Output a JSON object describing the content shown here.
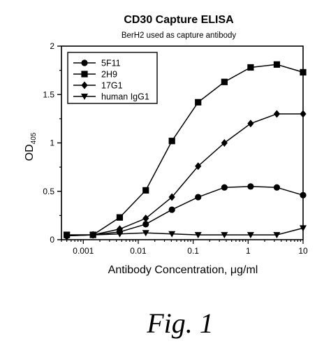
{
  "chart_data": {
    "type": "line",
    "title": "CD30 Capture ELISA",
    "subtitle": "BerH2 used as  capture antibody",
    "xlabel": "Antibody Concentration, μg/ml",
    "ylabel": "OD",
    "ylabel_sub": "405",
    "xscale": "log",
    "xlim": [
      0.0004,
      10
    ],
    "ylim": [
      0,
      2
    ],
    "x_ticks": [
      0.001,
      0.01,
      0.1,
      1,
      10
    ],
    "x_tick_labels": [
      "0.001",
      "0.01",
      "0.1",
      "1",
      "10"
    ],
    "y_ticks": [
      0,
      0.5,
      1,
      1.5,
      2
    ],
    "y_tick_labels": [
      "0",
      "0.5",
      "1",
      "1.5",
      "2"
    ],
    "legend_position": "top-left",
    "x": [
      0.0005,
      0.0015,
      0.0046,
      0.0137,
      0.041,
      0.123,
      0.37,
      1.11,
      3.33,
      10
    ],
    "series": [
      {
        "name": "5F11",
        "marker": "circle",
        "values": [
          0.04,
          0.05,
          0.08,
          0.16,
          0.31,
          0.44,
          0.54,
          0.55,
          0.54,
          0.46
        ]
      },
      {
        "name": "2H9",
        "marker": "square",
        "values": [
          0.05,
          0.05,
          0.23,
          0.51,
          1.02,
          1.42,
          1.63,
          1.78,
          1.81,
          1.73
        ]
      },
      {
        "name": "17G1",
        "marker": "diamond",
        "values": [
          0.04,
          0.05,
          0.11,
          0.22,
          0.44,
          0.76,
          1.0,
          1.2,
          1.3,
          1.3
        ]
      },
      {
        "name": "human IgG1",
        "marker": "triangle-down",
        "values": [
          0.05,
          0.05,
          0.06,
          0.07,
          0.06,
          0.05,
          0.05,
          0.05,
          0.05,
          0.12
        ]
      }
    ]
  },
  "caption": "Fig. 1"
}
